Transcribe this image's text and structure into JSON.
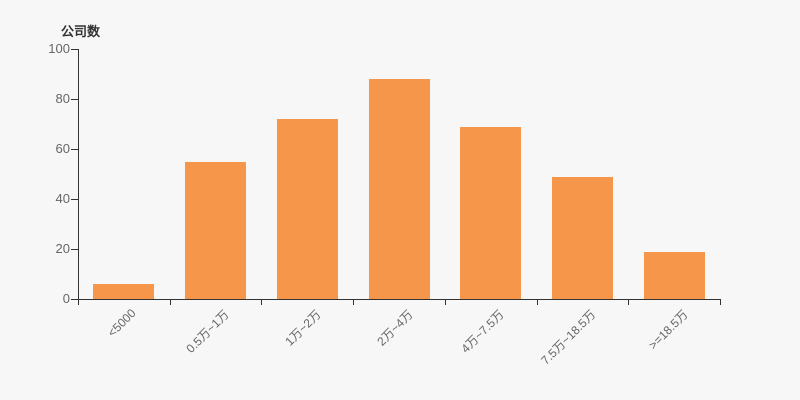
{
  "page": {
    "background_color": "#f7f7f7"
  },
  "chart_data": {
    "type": "bar",
    "title": "",
    "ylabel": "公司数",
    "xlabel": "",
    "categories": [
      "<5000",
      "0.5万~1万",
      "1万~2万",
      "2万~4万",
      "4万~7.5万",
      "7.5万~18.5万",
      ">=18.5万"
    ],
    "values": [
      6,
      55,
      72,
      88,
      69,
      49,
      19
    ],
    "ylim": [
      0,
      100
    ],
    "yticks": [
      0,
      20,
      40,
      60,
      80,
      100
    ],
    "grid": false,
    "legend_position": "none",
    "x_label_rotation_deg": 45,
    "bar_color": "#f5964b",
    "axis_color": "#333333",
    "tick_label_color": "#666666",
    "title_color": "#333333"
  }
}
